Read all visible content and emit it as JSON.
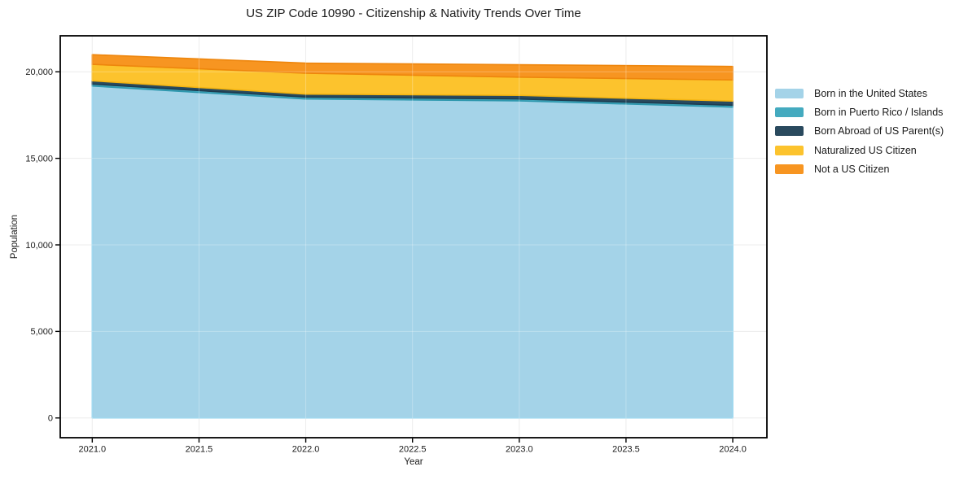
{
  "title": "US ZIP Code 10990 - Citizenship & Nativity Trends Over Time",
  "chart_data": {
    "type": "area",
    "stacked": true,
    "title": "US ZIP Code 10990 - Citizenship & Nativity Trends Over Time",
    "xlabel": "Year",
    "ylabel": "Population",
    "x": [
      2021,
      2022,
      2023,
      2024
    ],
    "series": [
      {
        "name": "Born in the United States",
        "color": "#a4d3e8",
        "edge_color": "#87ceeb",
        "values": [
          19180,
          18430,
          18320,
          17960
        ]
      },
      {
        "name": "Born in Puerto Rico / Islands",
        "color": "#44aabf",
        "edge_color": "#2e97ad",
        "values": [
          110,
          110,
          110,
          110
        ]
      },
      {
        "name": "Born Abroad of US Parent(s)",
        "color": "#2a4a5e",
        "edge_color": "#1d3c50",
        "values": [
          190,
          170,
          210,
          240
        ]
      },
      {
        "name": "Naturalized US Citizen",
        "color": "#fcc32d",
        "edge_color": "#f5b511",
        "values": [
          950,
          1210,
          1050,
          1220
        ]
      },
      {
        "name": "Not a US Citizen",
        "color": "#f79521",
        "edge_color": "#ee860d",
        "values": [
          560,
          580,
          720,
          780
        ]
      }
    ],
    "xlim": [
      2020.85,
      2024.16
    ],
    "ylim": [
      -1140,
      22080
    ],
    "x_ticks": [
      2021.0,
      2021.5,
      2022.0,
      2022.5,
      2023.0,
      2023.5,
      2024.0
    ],
    "x_tick_labels": [
      "2021.0",
      "2021.5",
      "2022.0",
      "2022.5",
      "2023.0",
      "2023.5",
      "2024.0"
    ],
    "y_ticks": [
      0,
      5000,
      10000,
      15000,
      20000
    ],
    "y_tick_labels": [
      "0",
      "5,000",
      "10,000",
      "15,000",
      "20,000"
    ],
    "grid": true,
    "grid_color": "#e7e7e7",
    "spine_color": "#000000",
    "legend_position": "right of plot, no frame"
  }
}
